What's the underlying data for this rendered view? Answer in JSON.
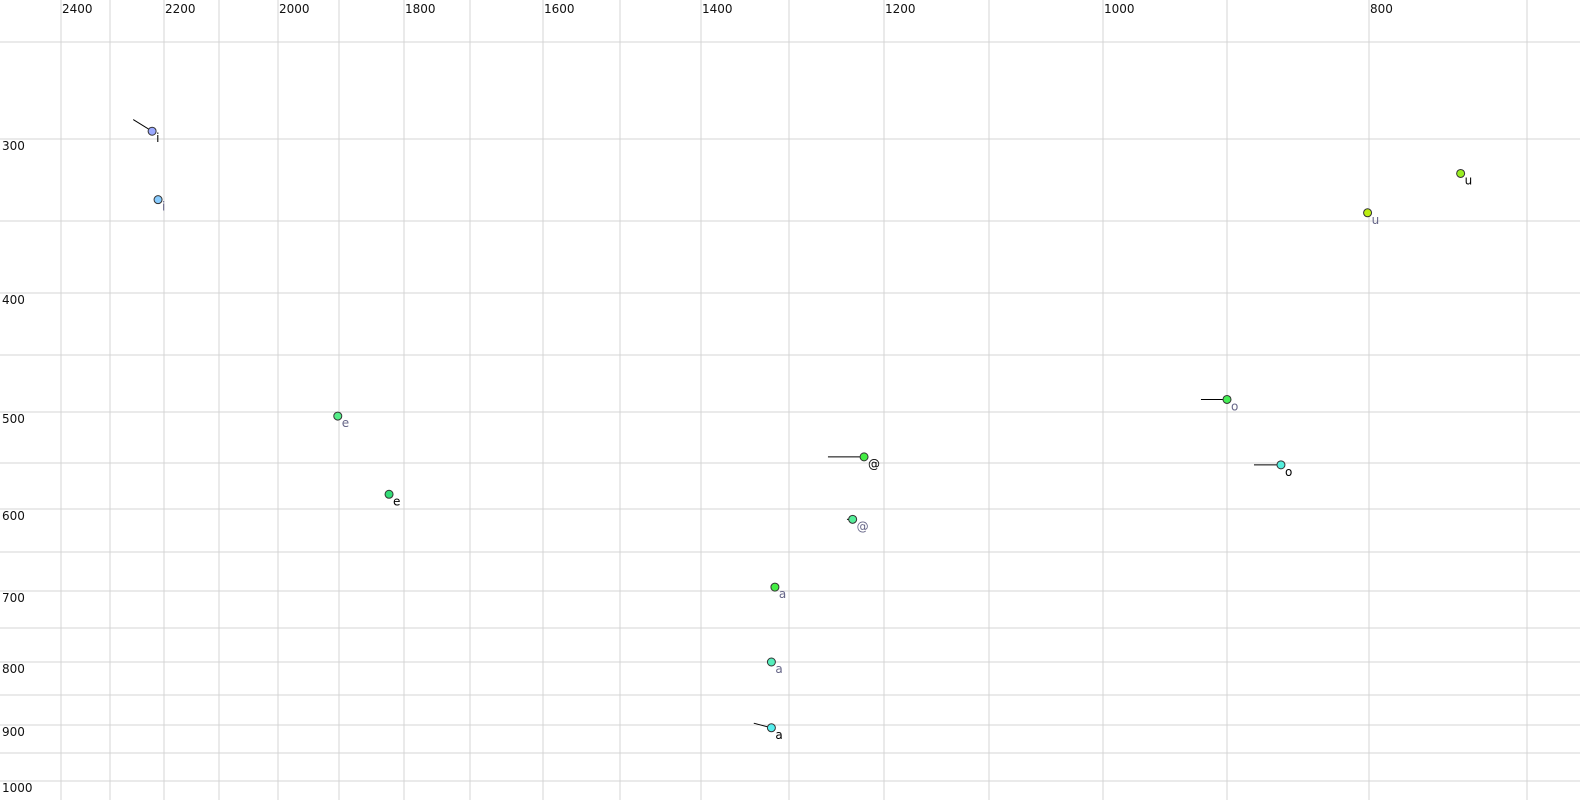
{
  "chart_data": {
    "type": "scatter",
    "title": "",
    "xlabel": "",
    "ylabel": "",
    "x_axis": {
      "reversed": true,
      "position": "top",
      "range": [
        2400,
        700
      ],
      "grid_step": 100,
      "tick_labels": [
        "2400",
        "2200",
        "2000",
        "1800",
        "1600",
        "1400",
        "1200",
        "1000",
        "800"
      ]
    },
    "y_axis": {
      "reversed": false,
      "position": "left",
      "range": [
        250,
        1000
      ],
      "grid_step": 50,
      "tick_labels": [
        "300",
        "400",
        "500",
        "600",
        "700",
        "800",
        "900",
        "1000"
      ]
    },
    "grid": true,
    "points": [
      {
        "label": "i",
        "x": 2222,
        "y": 296,
        "trail_from": [
          2257,
          290
        ],
        "color": "#9aa8ff",
        "label_color": "#000000"
      },
      {
        "label": "i",
        "x": 2211,
        "y": 337,
        "trail_from": null,
        "color": "#88ccff",
        "label_color": "#666688"
      },
      {
        "label": "u",
        "x": 742,
        "y": 321,
        "trail_from": null,
        "color": "#99ee22",
        "label_color": "#000000"
      },
      {
        "label": "u",
        "x": 801,
        "y": 345,
        "trail_from": null,
        "color": "#bbee11",
        "label_color": "#666688"
      },
      {
        "label": "e",
        "x": 1902,
        "y": 504,
        "trail_from": null,
        "color": "#55ee88",
        "label_color": "#666688"
      },
      {
        "label": "e",
        "x": 1823,
        "y": 584,
        "trail_from": null,
        "color": "#33dd77",
        "label_color": "#000000"
      },
      {
        "label": "@",
        "x": 1221,
        "y": 544,
        "trail_from": [
          1259,
          544
        ],
        "color": "#44ee44",
        "label_color": "#000000"
      },
      {
        "label": "@",
        "x": 1233,
        "y": 612,
        "trail_from": [
          1239,
          612
        ],
        "color": "#55ee99",
        "label_color": "#666688"
      },
      {
        "label": "a",
        "x": 1316,
        "y": 695,
        "trail_from": null,
        "color": "#44ee44",
        "label_color": "#666688"
      },
      {
        "label": "a",
        "x": 1320,
        "y": 800,
        "trail_from": null,
        "color": "#55eebb",
        "label_color": "#666688"
      },
      {
        "label": "a",
        "x": 1320,
        "y": 905,
        "trail_from": [
          1340,
          897
        ],
        "color": "#55eeee",
        "label_color": "#000000"
      },
      {
        "label": "o",
        "x": 900,
        "y": 489,
        "trail_from": [
          921,
          489
        ],
        "color": "#44ee55",
        "label_color": "#666688"
      },
      {
        "label": "o",
        "x": 862,
        "y": 552,
        "trail_from": [
          881,
          552
        ],
        "color": "#55eedd",
        "label_color": "#000000"
      }
    ]
  }
}
